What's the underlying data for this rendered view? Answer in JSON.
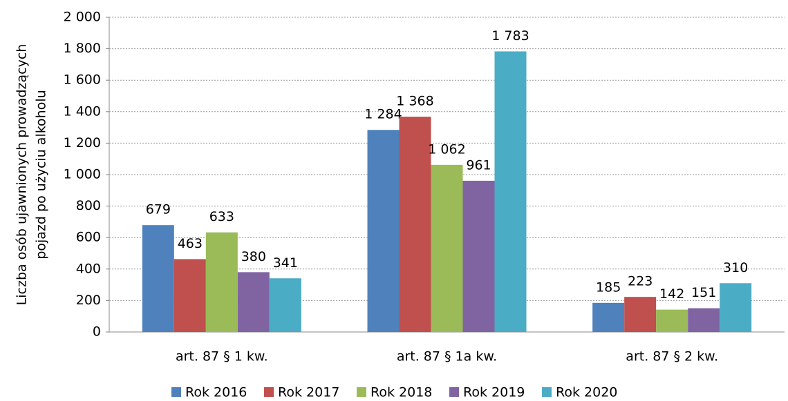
{
  "chart_data": {
    "type": "bar",
    "ylabel": [
      "Liczba osób ujawnionych prowadzących",
      "pojazd po użyciu alkoholu"
    ],
    "categories": [
      "art. 87 § 1 kw.",
      "art. 87 § 1a kw.",
      "art. 87 § 2 kw."
    ],
    "series": [
      {
        "name": "Rok 2016",
        "color": "#4f81bd",
        "values": [
          679,
          1284,
          185
        ],
        "value_labels": [
          "679",
          "1 284",
          "185"
        ]
      },
      {
        "name": "Rok 2017",
        "color": "#c0504d",
        "values": [
          463,
          1368,
          223
        ],
        "value_labels": [
          "463",
          "1 368",
          "223"
        ]
      },
      {
        "name": "Rok 2018",
        "color": "#9bbb59",
        "values": [
          633,
          1062,
          142
        ],
        "value_labels": [
          "633",
          "1 062",
          "142"
        ]
      },
      {
        "name": "Rok 2019",
        "color": "#8064a2",
        "values": [
          380,
          961,
          151
        ],
        "value_labels": [
          "380",
          "961",
          "151"
        ]
      },
      {
        "name": "Rok 2020",
        "color": "#4bacc6",
        "values": [
          341,
          1783,
          310
        ],
        "value_labels": [
          "341",
          "1 783",
          "310"
        ]
      }
    ],
    "ylim": [
      0,
      2000
    ],
    "yticks": [
      0,
      200,
      400,
      600,
      800,
      {
        "value": 1000,
        "label": "1 000"
      },
      {
        "value": 1200,
        "label": "1 200"
      },
      {
        "value": 1400,
        "label": "1 400"
      },
      {
        "value": 1600,
        "label": "1 600"
      },
      {
        "value": 1800,
        "label": "1 800"
      },
      {
        "value": 2000,
        "label": "2 000"
      }
    ],
    "grid": true,
    "legend": "bottom"
  }
}
